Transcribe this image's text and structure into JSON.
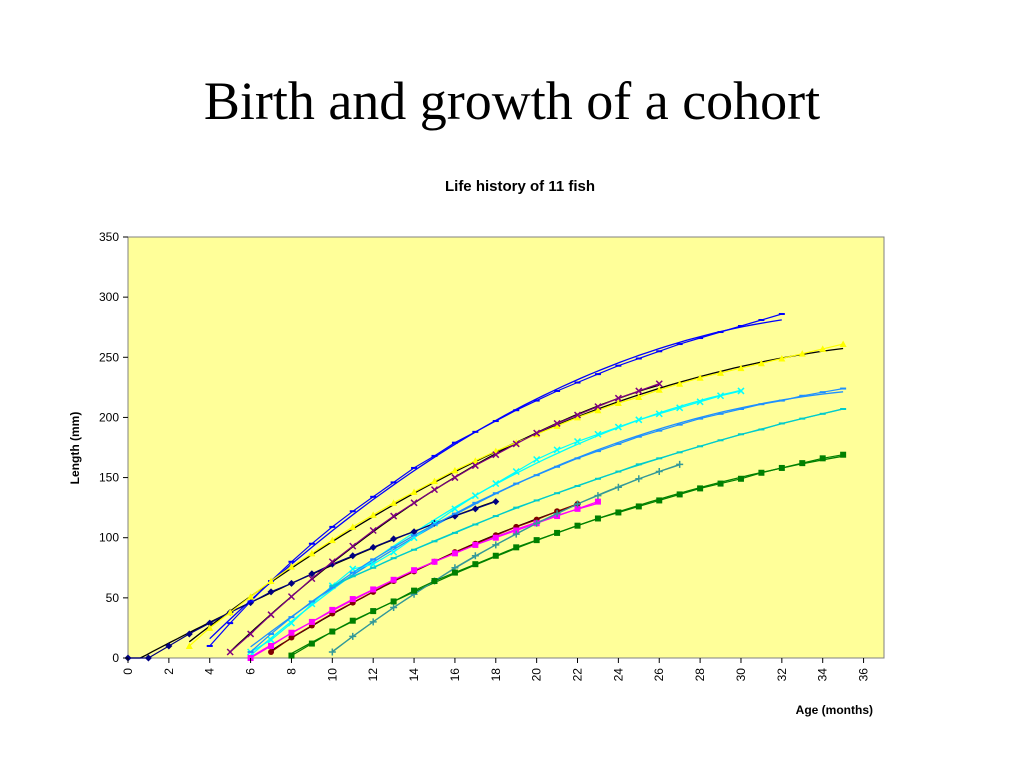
{
  "slide": {
    "title": "Birth and growth of a cohort"
  },
  "chart_data": {
    "type": "line",
    "title": "Life history of 11 fish",
    "xlabel": "Age (months)",
    "ylabel": "Length (mm)",
    "xlim": [
      0,
      37
    ],
    "ylim": [
      0,
      350
    ],
    "xticks": [
      0,
      2,
      4,
      6,
      8,
      10,
      12,
      14,
      16,
      18,
      20,
      22,
      24,
      26,
      28,
      30,
      32,
      34,
      36
    ],
    "yticks": [
      0,
      50,
      100,
      150,
      200,
      250,
      300,
      350
    ],
    "grid": false,
    "legend": "none",
    "colors": {
      "plot_background": "#ffff99",
      "trend_line": "#000000"
    },
    "series": [
      {
        "color": "#000080",
        "marker": "diamond",
        "x": [
          0,
          1,
          2,
          3,
          4,
          5,
          6,
          7,
          8,
          9,
          10,
          11,
          12,
          13,
          14,
          15,
          16,
          17,
          18
        ],
        "y": [
          0,
          0,
          10,
          20,
          29,
          38,
          46,
          55,
          62,
          70,
          78,
          85,
          92,
          99,
          105,
          112,
          118,
          124,
          130
        ]
      },
      {
        "color": "#0000ff",
        "marker": "dash",
        "x": [
          4,
          5,
          6,
          7,
          8,
          9,
          10,
          11,
          12,
          13,
          14,
          15,
          16,
          17,
          18,
          19,
          20,
          21,
          22,
          23,
          24,
          25,
          26,
          27,
          28,
          29,
          30,
          31,
          32
        ],
        "y": [
          10,
          29,
          47,
          64,
          80,
          95,
          109,
          122,
          134,
          146,
          158,
          168,
          179,
          188,
          197,
          206,
          214,
          222,
          229,
          236,
          243,
          249,
          255,
          261,
          266,
          271,
          276,
          281,
          286
        ]
      },
      {
        "color": "#ffff00",
        "marker": "triangle",
        "x": [
          3,
          4,
          5,
          6,
          7,
          8,
          9,
          10,
          11,
          12,
          13,
          14,
          15,
          16,
          17,
          18,
          19,
          20,
          21,
          22,
          23,
          24,
          25,
          26,
          27,
          28,
          29,
          30,
          31,
          32,
          33,
          34,
          35
        ],
        "y": [
          10,
          25,
          38,
          51,
          64,
          76,
          87,
          98,
          109,
          119,
          129,
          138,
          147,
          156,
          164,
          172,
          179,
          186,
          193,
          200,
          206,
          212,
          217,
          223,
          228,
          233,
          237,
          241,
          245,
          249,
          253,
          257,
          261
        ]
      },
      {
        "color": "#800080",
        "marker": "x",
        "x": [
          5,
          6,
          7,
          8,
          9,
          10,
          11,
          12,
          13,
          14,
          15,
          16,
          17,
          18,
          19,
          20,
          21,
          22,
          23,
          24,
          25,
          26
        ],
        "y": [
          5,
          20,
          36,
          51,
          66,
          80,
          93,
          106,
          118,
          129,
          140,
          150,
          160,
          169,
          178,
          187,
          195,
          202,
          209,
          216,
          222,
          228
        ]
      },
      {
        "color": "#00ffff",
        "marker": "x",
        "x": [
          6,
          7,
          8,
          9,
          10,
          11,
          12,
          13,
          14,
          15,
          16,
          17,
          18,
          19,
          20,
          21,
          22,
          23,
          24,
          25,
          26,
          27,
          28,
          29,
          30
        ],
        "y": [
          5,
          15,
          29,
          45,
          60,
          74,
          78,
          88,
          100,
          112,
          124,
          135,
          145,
          155,
          165,
          173,
          180,
          186,
          192,
          198,
          203,
          208,
          213,
          218,
          222
        ]
      },
      {
        "color": "#800000",
        "marker": "circle",
        "x": [
          7,
          8,
          9,
          10,
          11,
          12,
          13,
          14,
          15,
          16,
          17,
          18,
          19,
          20,
          21,
          22
        ],
        "y": [
          5,
          17,
          27,
          37,
          46,
          55,
          64,
          72,
          80,
          88,
          95,
          102,
          109,
          115,
          122,
          128
        ]
      },
      {
        "color": "#ff00ff",
        "marker": "square",
        "x": [
          6,
          7,
          8,
          9,
          10,
          11,
          12,
          13,
          14,
          15,
          16,
          17,
          18,
          19,
          20,
          21,
          22,
          23
        ],
        "y": [
          0,
          10,
          21,
          30,
          40,
          49,
          57,
          65,
          73,
          80,
          87,
          94,
          100,
          106,
          112,
          118,
          124,
          130
        ]
      },
      {
        "color": "#1e90ff",
        "marker": "dash",
        "x": [
          6,
          7,
          8,
          9,
          10,
          11,
          12,
          13,
          14,
          15,
          16,
          17,
          18,
          19,
          20,
          21,
          22,
          23,
          24,
          25,
          26,
          27,
          28,
          29,
          30,
          31,
          32,
          33,
          34,
          35
        ],
        "y": [
          5,
          20,
          34,
          47,
          59,
          71,
          82,
          92,
          102,
          111,
          120,
          129,
          137,
          145,
          152,
          159,
          166,
          172,
          178,
          184,
          189,
          194,
          199,
          203,
          207,
          211,
          214,
          218,
          221,
          224
        ]
      },
      {
        "color": "#339999",
        "marker": "plus",
        "x": [
          10,
          11,
          12,
          13,
          14,
          15,
          16,
          17,
          18,
          19,
          20,
          21,
          22,
          23,
          24,
          25,
          26,
          27
        ],
        "y": [
          5,
          18,
          30,
          42,
          53,
          64,
          75,
          85,
          94,
          103,
          112,
          120,
          128,
          135,
          142,
          149,
          155,
          161
        ]
      },
      {
        "color": "#008000",
        "marker": "square",
        "x": [
          8,
          9,
          10,
          11,
          12,
          13,
          14,
          15,
          16,
          17,
          18,
          19,
          20,
          21,
          22,
          23,
          24,
          25,
          26,
          27,
          28,
          29,
          30,
          31,
          32,
          33,
          34,
          35
        ],
        "y": [
          2,
          12,
          22,
          31,
          39,
          47,
          56,
          64,
          71,
          78,
          85,
          92,
          98,
          104,
          110,
          116,
          121,
          126,
          131,
          136,
          141,
          145,
          149,
          154,
          158,
          162,
          166,
          169
        ]
      },
      {
        "color": "#00cccc",
        "marker": "dash",
        "x": [
          10,
          11,
          12,
          13,
          14,
          15,
          16,
          17,
          18,
          19,
          20,
          21,
          22,
          23,
          24,
          25,
          26,
          27,
          28,
          29,
          30,
          31,
          32,
          33,
          34,
          35
        ],
        "y": [
          60,
          68,
          75,
          83,
          90,
          97,
          104,
          111,
          118,
          125,
          131,
          137,
          143,
          149,
          155,
          161,
          166,
          171,
          176,
          181,
          186,
          190,
          195,
          199,
          203,
          207
        ]
      }
    ]
  }
}
